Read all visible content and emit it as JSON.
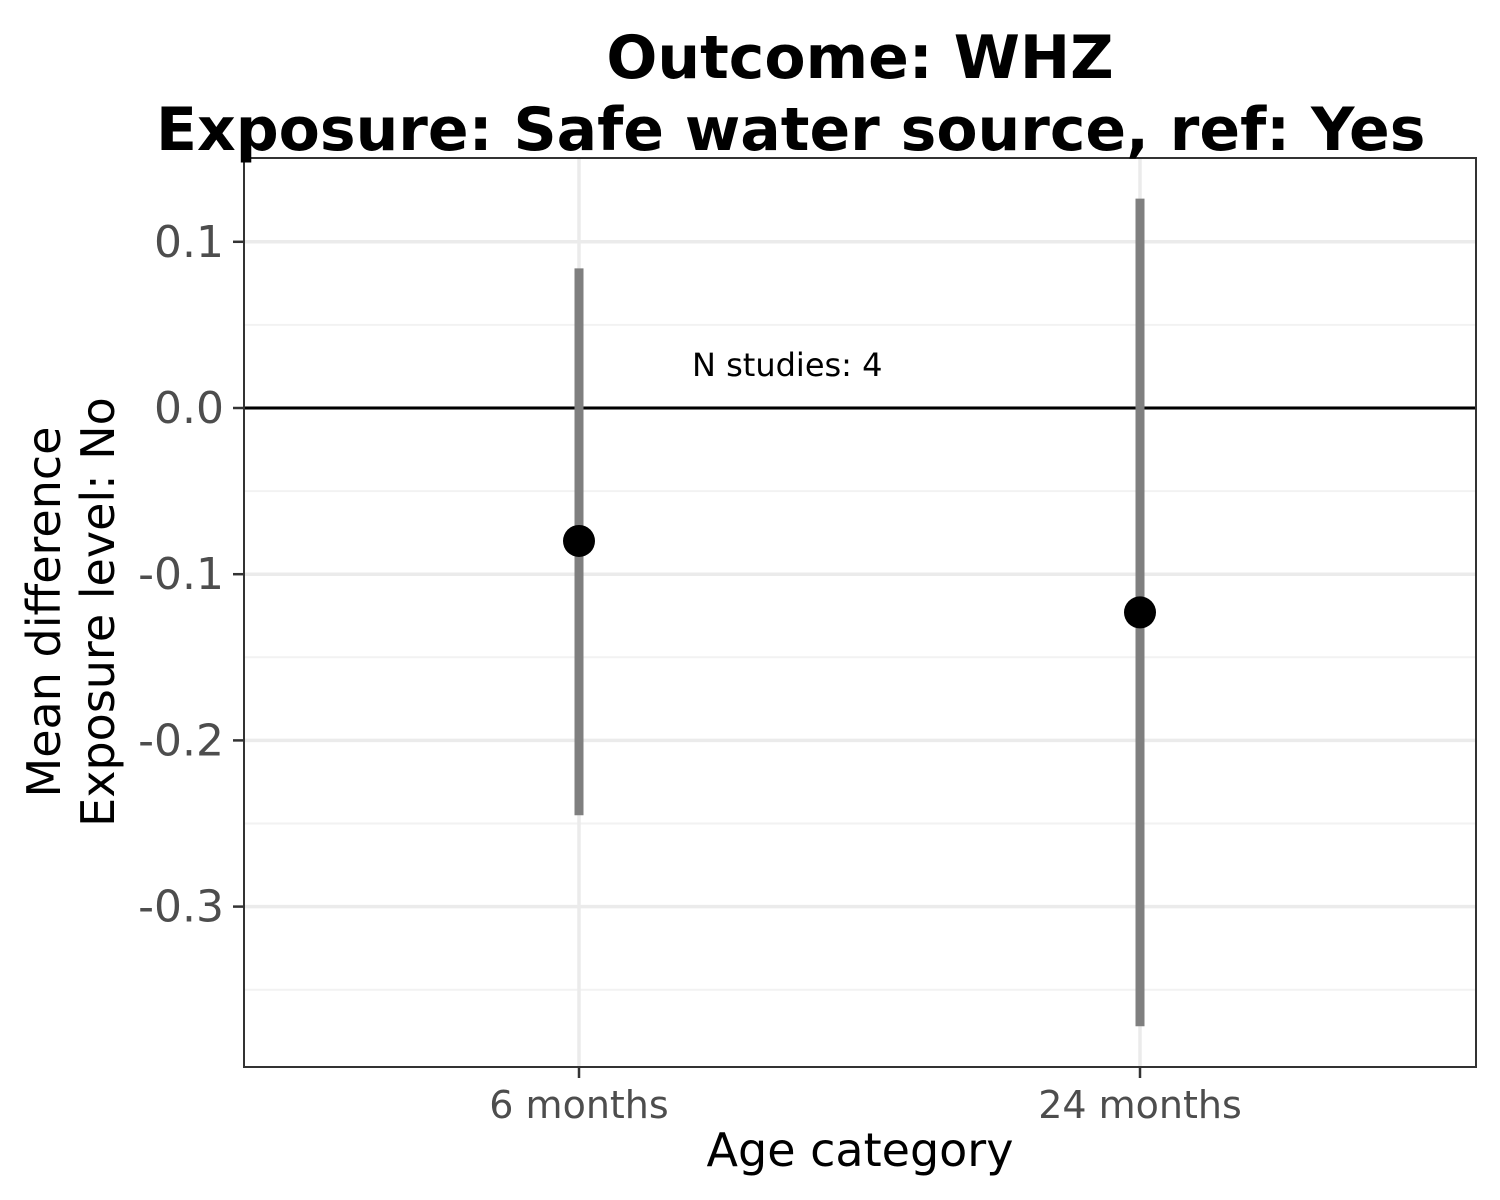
{
  "chart_data": {
    "type": "scatter",
    "title": "Outcome: WHZ",
    "subtitle": "Exposure: Safe water source, ref: Yes",
    "xlabel": "Age category",
    "ylabel_line1": "Mean difference",
    "ylabel_line2": "Exposure level: No",
    "categories": [
      "6 months",
      "24 months"
    ],
    "estimates": [
      -0.08,
      -0.123
    ],
    "ci_lower": [
      -0.245,
      -0.372
    ],
    "ci_upper": [
      0.084,
      0.126
    ],
    "yticks": [
      0.1,
      0.0,
      -0.1,
      -0.2,
      -0.3
    ],
    "ytick_labels": [
      "0.1",
      "0.0",
      "-0.1",
      "-0.2",
      "-0.3"
    ],
    "ylim": [
      -0.395,
      0.15
    ],
    "reference_line": 0,
    "annotation": "N studies: 4",
    "grid": true,
    "colors": {
      "point": "#000000",
      "ci": "#7f7f7f",
      "grid_major": "#ebebeb",
      "grid_minor": "#f2f2f2",
      "panel_border": "#333333",
      "reference_line": "#000000"
    }
  }
}
